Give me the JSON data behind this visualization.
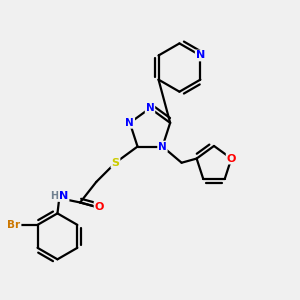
{
  "bg_color": "#f0f0f0",
  "atom_colors": {
    "N": "#0000ff",
    "O": "#ff0000",
    "S": "#cccc00",
    "Br": "#cc7700",
    "C": "#000000",
    "H": "#708090"
  },
  "bond_color": "#000000",
  "bond_width": 1.6
}
